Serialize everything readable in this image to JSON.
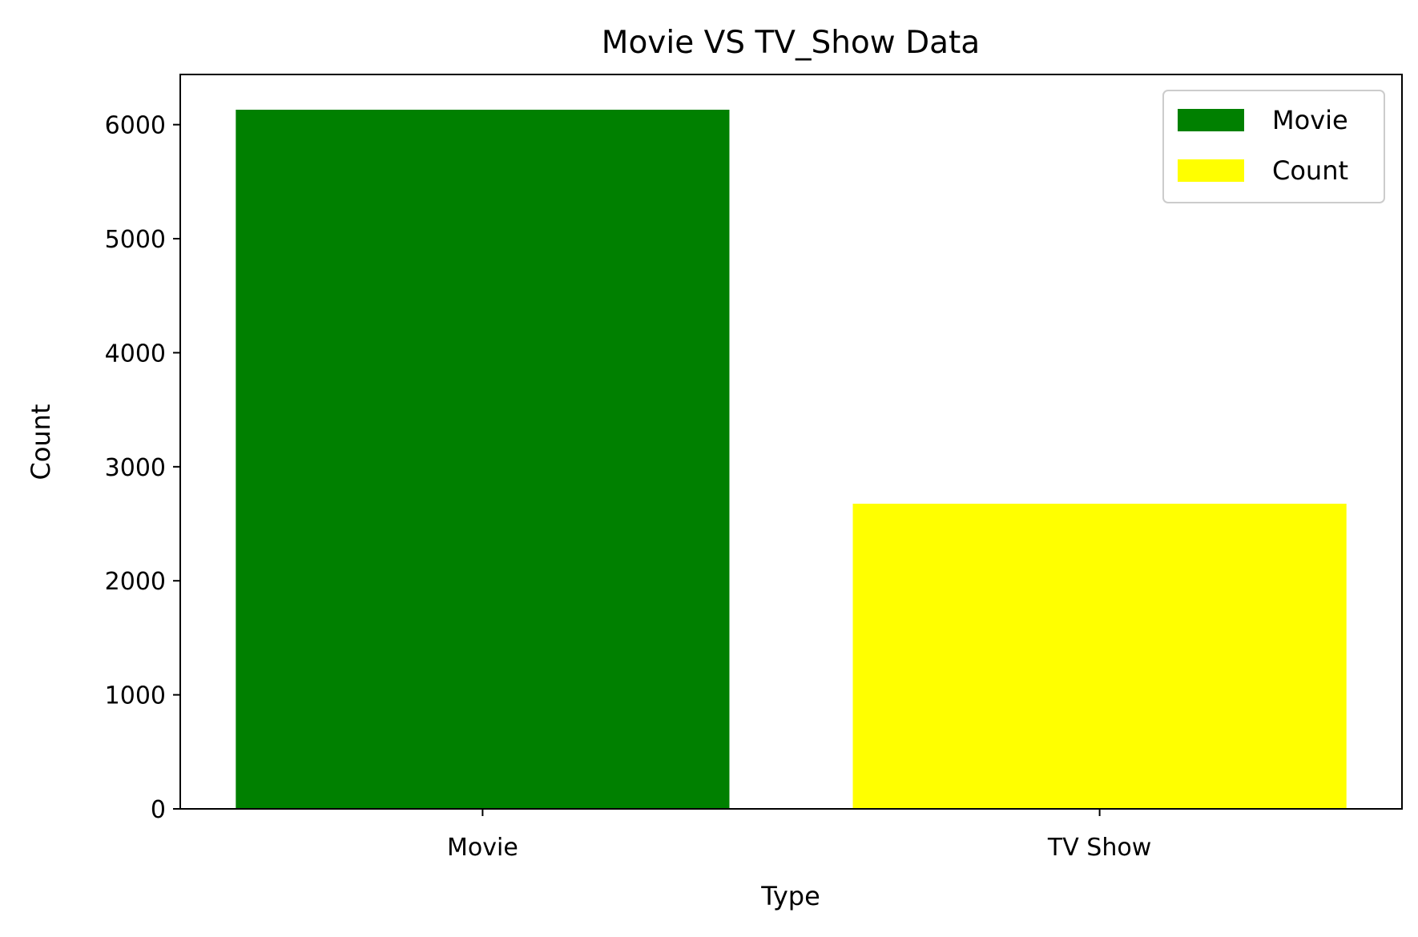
{
  "chart_data": {
    "type": "bar",
    "title": "Movie VS TV_Show Data",
    "xlabel": "Type",
    "ylabel": "Count",
    "categories": [
      "Movie",
      "TV Show"
    ],
    "values": [
      6131,
      2676
    ],
    "bar_colors": [
      "#008000",
      "#ffff00"
    ],
    "ylim": [
      0,
      6440
    ],
    "yticks": [
      0,
      1000,
      2000,
      3000,
      4000,
      5000,
      6000
    ],
    "ytick_labels": [
      "0",
      "1000",
      "2000",
      "3000",
      "4000",
      "5000",
      "6000"
    ],
    "grid": false,
    "legend": {
      "placement": "top-right",
      "entries": [
        {
          "label": "Movie",
          "color": "#008000"
        },
        {
          "label": "Count",
          "color": "#ffff00"
        }
      ]
    }
  }
}
